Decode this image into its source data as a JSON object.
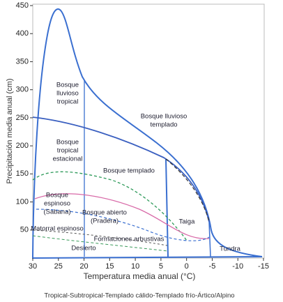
{
  "chart_data": {
    "type": "biome",
    "xlabel": "Temperatura media anual (°C)",
    "ylabel": "Precipitación media anual (cm)",
    "caption": "Tropical-Subtropical-Templado cálido-Templado frío-Ártico/Alpino",
    "xlim": [
      30,
      -15
    ],
    "ylim": [
      0,
      450
    ],
    "xticks": [
      30,
      25,
      20,
      15,
      10,
      5,
      0,
      -5,
      -10,
      -15
    ],
    "yticks": [
      50,
      100,
      150,
      200,
      250,
      300,
      350,
      400,
      450
    ],
    "regions": [
      [
        "Bosque",
        "lluvioso",
        "tropical"
      ],
      [
        "Bosque lluvioso",
        "templado"
      ],
      [
        "Bosque",
        "tropical",
        "estacional"
      ],
      [
        "Bosque templado"
      ],
      [
        "Bosque",
        "espinoso",
        "(Sabana)"
      ],
      [
        "Bosque abierto",
        "(Pradera)"
      ],
      [
        "Taiga"
      ],
      [
        "Matorral espinoso"
      ],
      [
        "Formaciones arbustivas"
      ],
      [
        "Desierto"
      ],
      [
        "Tundra"
      ]
    ]
  }
}
